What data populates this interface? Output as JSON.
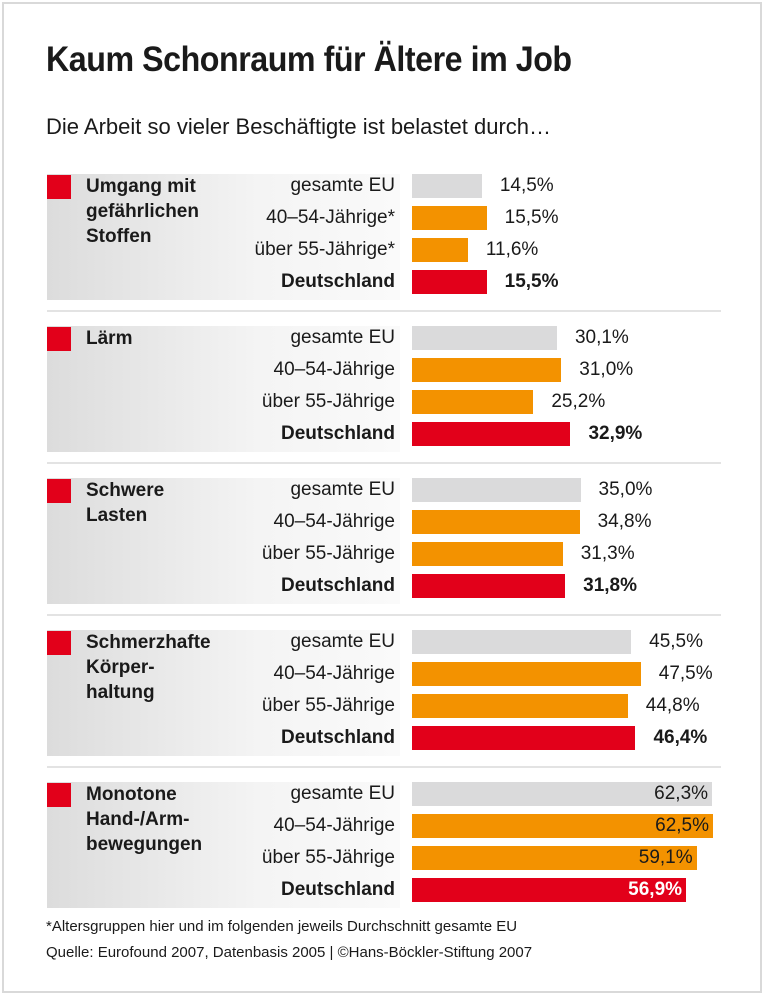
{
  "title": "Kaum Schonraum für Ältere im Job",
  "subtitle": "Die Arbeit so vieler Beschäftigte ist belastet durch…",
  "footnote": "*Altersgruppen hier und im folgenden jeweils Durchschnitt gesamte EU",
  "source": "Quelle: Eurofound 2007, Datenbasis 2005 | ©Hans-Böckler-Stiftung 2007",
  "colors": {
    "gesamte_eu": "#dadadb",
    "age_groups": "#f39200",
    "deutschland": "#e2001a",
    "marker": "#e2001a"
  },
  "chart_data": {
    "type": "bar",
    "orientation": "horizontal",
    "unit": "%",
    "xlim": [
      0,
      62.5
    ],
    "grid": false,
    "groups": [
      {
        "category": "Umgang mit gefährlichen Stoffen",
        "rows": [
          {
            "label": "gesamte EU",
            "value": 14.5,
            "display": "14,5%",
            "kind": "eu"
          },
          {
            "label": "40–54-Jährige*",
            "value": 15.5,
            "display": "15,5%",
            "kind": "age"
          },
          {
            "label": "über 55-Jährige*",
            "value": 11.6,
            "display": "11,6%",
            "kind": "age"
          },
          {
            "label": "Deutschland",
            "value": 15.5,
            "display": "15,5%",
            "kind": "de"
          }
        ]
      },
      {
        "category": "Lärm",
        "rows": [
          {
            "label": "gesamte EU",
            "value": 30.1,
            "display": "30,1%",
            "kind": "eu"
          },
          {
            "label": "40–54-Jährige",
            "value": 31.0,
            "display": "31,0%",
            "kind": "age"
          },
          {
            "label": "über 55-Jährige",
            "value": 25.2,
            "display": "25,2%",
            "kind": "age"
          },
          {
            "label": "Deutschland",
            "value": 32.9,
            "display": "32,9%",
            "kind": "de"
          }
        ]
      },
      {
        "category": "Schwere Lasten",
        "rows": [
          {
            "label": "gesamte EU",
            "value": 35.0,
            "display": "35,0%",
            "kind": "eu"
          },
          {
            "label": "40–54-Jährige",
            "value": 34.8,
            "display": "34,8%",
            "kind": "age"
          },
          {
            "label": "über 55-Jährige",
            "value": 31.3,
            "display": "31,3%",
            "kind": "age"
          },
          {
            "label": "Deutschland",
            "value": 31.8,
            "display": "31,8%",
            "kind": "de"
          }
        ]
      },
      {
        "category": "Schmerzhafte Körper-haltung",
        "rows": [
          {
            "label": "gesamte EU",
            "value": 45.5,
            "display": "45,5%",
            "kind": "eu"
          },
          {
            "label": "40–54-Jährige",
            "value": 47.5,
            "display": "47,5%",
            "kind": "age"
          },
          {
            "label": "über 55-Jährige",
            "value": 44.8,
            "display": "44,8%",
            "kind": "age"
          },
          {
            "label": "Deutschland",
            "value": 46.4,
            "display": "46,4%",
            "kind": "de"
          }
        ]
      },
      {
        "category": "Monotone Hand-/Arm-bewegungen",
        "rows": [
          {
            "label": "gesamte EU",
            "value": 62.3,
            "display": "62,3%",
            "kind": "eu"
          },
          {
            "label": "40–54-Jährige",
            "value": 62.5,
            "display": "62,5%",
            "kind": "age"
          },
          {
            "label": "über 55-Jährige",
            "value": 59.1,
            "display": "59,1%",
            "kind": "age"
          },
          {
            "label": "Deutschland",
            "value": 56.9,
            "display": "56,9%",
            "kind": "de"
          }
        ]
      }
    ]
  }
}
